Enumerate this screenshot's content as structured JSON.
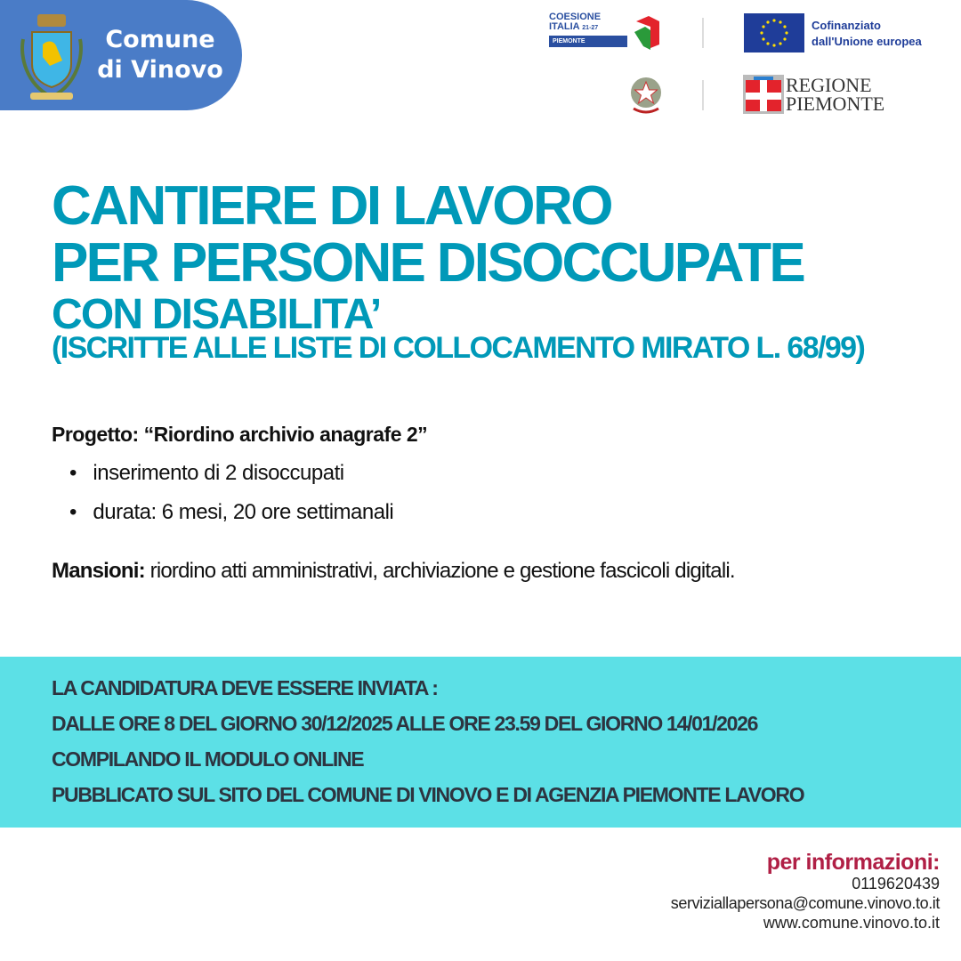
{
  "header": {
    "comune_line1": "Comune",
    "comune_line2": "di Vinovo",
    "logos": {
      "coesione_line1": "COESIONE",
      "coesione_line2": "ITALIA",
      "coesione_years": "21-27",
      "coesione_region": "PIEMONTE",
      "eu_line1": "Cofinanziato",
      "eu_line2": "dall'Unione europea",
      "regione_line1": "REGIONE",
      "regione_line2": "PIEMONTE"
    }
  },
  "title": {
    "line1": "CANTIERE DI LAVORO",
    "line2": "PER PERSONE DISOCCUPATE",
    "line3": "CON DISABILITA’",
    "line4": "(ISCRITTE ALLE LISTE DI COLLOCAMENTO MIRATO L. 68/99)"
  },
  "project": {
    "label": "Progetto: “Riordino archivio anagrafe 2”",
    "bullets": [
      "inserimento di 2 disoccupati",
      "durata: 6 mesi, 20 ore settimanali"
    ],
    "mansioni_label": "Mansioni:",
    "mansioni_text": " riordino atti amministrativi, archiviazione e gestione fascicoli digitali."
  },
  "band": {
    "lines": [
      "LA CANDIDATURA DEVE ESSERE INVIATA :",
      "DALLE ORE 8 DEL GIORNO 30/12/2025 ALLE ORE 23.59 DEL GIORNO 14/01/2026",
      "COMPILANDO IL MODULO ONLINE",
      "PUBBLICATO SUL SITO DEL COMUNE DI VINOVO E DI AGENZIA PIEMONTE LAVORO"
    ]
  },
  "contact": {
    "heading": "per informazioni:",
    "phone": "0119620439",
    "email": "serviziallapersona@comune.vinovo.to.it",
    "website": "www.comune.vinovo.to.it"
  },
  "colors": {
    "title": "#0099b8",
    "band": "#5ce0e6",
    "badge": "#4a7cc7",
    "info_heading": "#b01f45"
  }
}
